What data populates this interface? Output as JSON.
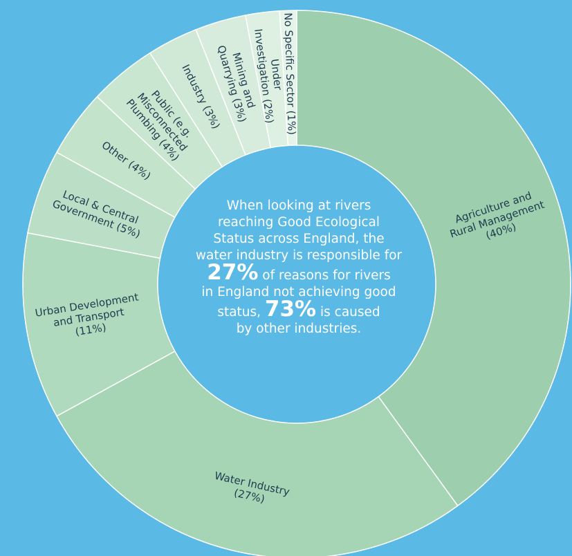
{
  "colors": {
    "background": "#5bb9e5",
    "slice_border": "#ffffff",
    "label_text": "#1e3a4e",
    "center_text": "#ffffff",
    "slice_fills": [
      "#9dcfae",
      "#a6d5b5",
      "#b0dabd",
      "#bbdfc6",
      "#c3e3cb",
      "#c9e6d0",
      "#d0e9d6",
      "#d7ecdc",
      "#ddf0e2",
      "#e5f3e9",
      "#f1f8f3"
    ]
  },
  "chart_data": {
    "type": "pie",
    "variant": "donut",
    "title": "",
    "slices": [
      {
        "label": "Agriculture and Rural Management (40%)",
        "lines": [
          "Agriculture and",
          "Rural Management",
          "(40%)"
        ],
        "value": 40
      },
      {
        "label": "Water Industry (27%)",
        "lines": [
          "Water Industry",
          "(27%)"
        ],
        "value": 27
      },
      {
        "label": "Urban Development and Transport (11%)",
        "lines": [
          "Urban Development",
          "and Transport",
          "(11%)"
        ],
        "value": 11
      },
      {
        "label": "Local & Central Government (5%)",
        "lines": [
          "Local & Central",
          "Government (5%)"
        ],
        "value": 5
      },
      {
        "label": "Other (4%)",
        "lines": [
          "Other (4%)"
        ],
        "value": 4
      },
      {
        "label": "Public (e.g. Misconnected Plumbing (4%)",
        "lines": [
          "Public (e.g.",
          "Misconnected",
          "Plumbing (4%)"
        ],
        "value": 4
      },
      {
        "label": "Industry (3%)",
        "lines": [
          "Industry (3%)"
        ],
        "value": 3
      },
      {
        "label": "Mining and Quarrying (3%)",
        "lines": [
          "Mining and",
          "Quarrying (3%)"
        ],
        "value": 3
      },
      {
        "label": "Under Investigation (2%)",
        "lines": [
          "Under",
          "Investigation (2%)"
        ],
        "value": 2
      },
      {
        "label": "No Specific Sector (1%)",
        "lines": [
          "No Specific Sector (1%)"
        ],
        "value": 1
      }
    ],
    "center_text": {
      "line1": "When looking at rivers",
      "line2": "reaching Good Ecological",
      "line3": "Status across England, the",
      "line4": "water industry is responsible for",
      "highlight1": "27%",
      "line5_rest": " of reasons for rivers",
      "line6": "in England not achieving good",
      "line7_pre": "status, ",
      "highlight2": "73%",
      "line7_post": " is caused",
      "line8": "by other industries."
    }
  }
}
